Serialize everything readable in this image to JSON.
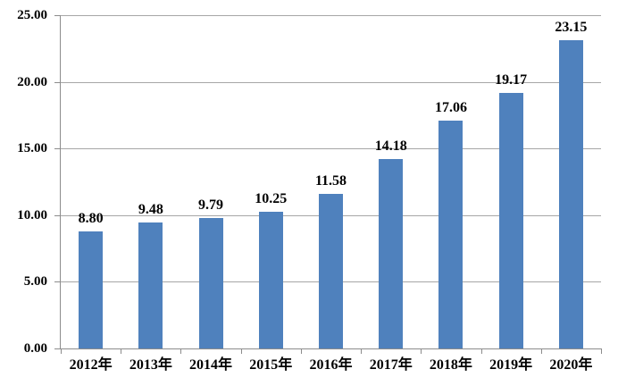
{
  "chart_data": {
    "type": "bar",
    "title": "",
    "xlabel": "",
    "ylabel": "",
    "categories": [
      "2012年",
      "2013年",
      "2014年",
      "2015年",
      "2016年",
      "2017年",
      "2018年",
      "2019年",
      "2020年"
    ],
    "values": [
      8.8,
      9.48,
      9.79,
      10.25,
      11.58,
      14.18,
      17.06,
      19.17,
      23.15
    ],
    "value_labels": [
      "8.80",
      "9.48",
      "9.79",
      "10.25",
      "11.58",
      "14.18",
      "17.06",
      "19.17",
      "23.15"
    ],
    "ylim": [
      0,
      25
    ],
    "ytick_step": 5,
    "ytick_labels": [
      "0.00",
      "5.00",
      "10.00",
      "15.00",
      "20.00",
      "25.00"
    ],
    "grid": true,
    "legend_position": "none",
    "colors": {
      "bar": "#4f81bd",
      "gridline": "#a6a6a6",
      "axis": "#8c8c8c",
      "text": "#000000",
      "background": "#ffffff"
    }
  }
}
